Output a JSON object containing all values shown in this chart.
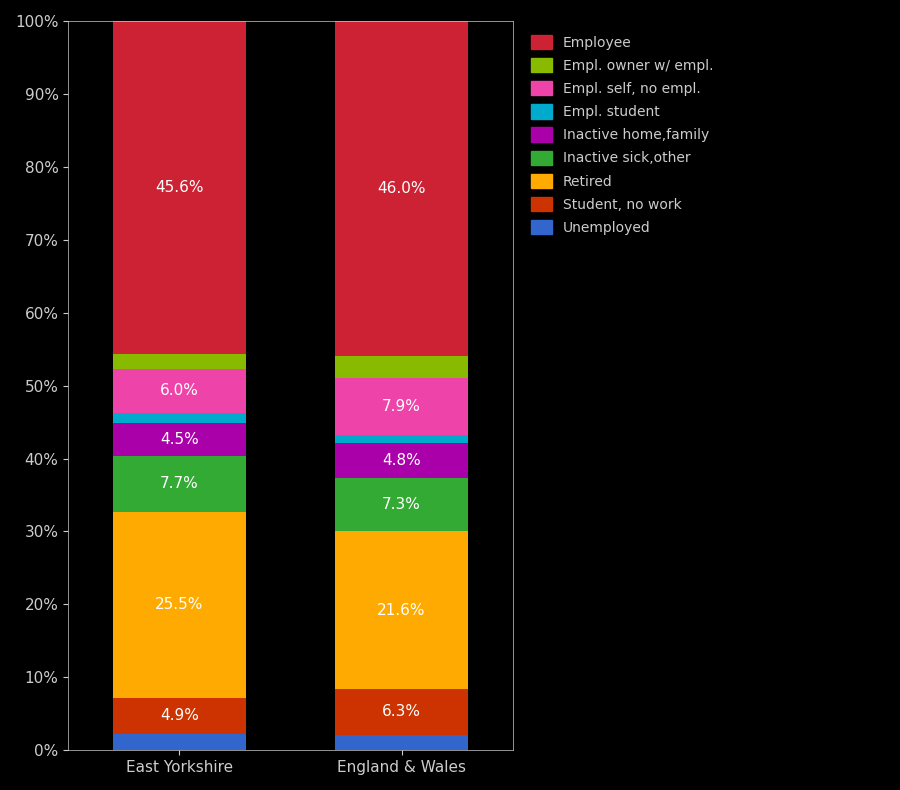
{
  "categories": [
    "East Yorkshire",
    "England & Wales"
  ],
  "segments": [
    {
      "label": "Unemployed",
      "color": "#3366cc",
      "values": [
        2.3,
        2.1
      ],
      "show_label": false
    },
    {
      "label": "Student, no work",
      "color": "#cc3300",
      "values": [
        4.9,
        6.3
      ],
      "show_label": true,
      "label_values": [
        "4.9%",
        "6.3%"
      ]
    },
    {
      "label": "Retired",
      "color": "#ffaa00",
      "values": [
        25.5,
        21.6
      ],
      "show_label": true,
      "label_values": [
        "25.5%",
        "21.6%"
      ]
    },
    {
      "label": "Inactive sick,other",
      "color": "#33aa33",
      "values": [
        7.7,
        7.3
      ],
      "show_label": true,
      "label_values": [
        "7.7%",
        "7.3%"
      ]
    },
    {
      "label": "Inactive home,family",
      "color": "#aa00aa",
      "values": [
        4.5,
        4.8
      ],
      "show_label": true,
      "label_values": [
        "4.5%",
        "4.8%"
      ]
    },
    {
      "label": "Empl. student",
      "color": "#00aacc",
      "values": [
        1.4,
        1.1
      ],
      "show_label": false
    },
    {
      "label": "Empl. self, no empl.",
      "color": "#ee44aa",
      "values": [
        6.0,
        7.9
      ],
      "show_label": true,
      "label_values": [
        "6.0%",
        "7.9%"
      ]
    },
    {
      "label": "Empl. owner w/ empl.",
      "color": "#88bb00",
      "values": [
        2.1,
        3.0
      ],
      "show_label": false
    },
    {
      "label": "Employee",
      "color": "#cc2233",
      "values": [
        45.6,
        46.0
      ],
      "show_label": true,
      "label_values": [
        "45.6%",
        "46.0%"
      ]
    }
  ],
  "background_color": "#000000",
  "text_color": "#cccccc",
  "bar_width": 0.6,
  "label_fontsize": 11,
  "tick_fontsize": 11,
  "legend_fontsize": 10
}
